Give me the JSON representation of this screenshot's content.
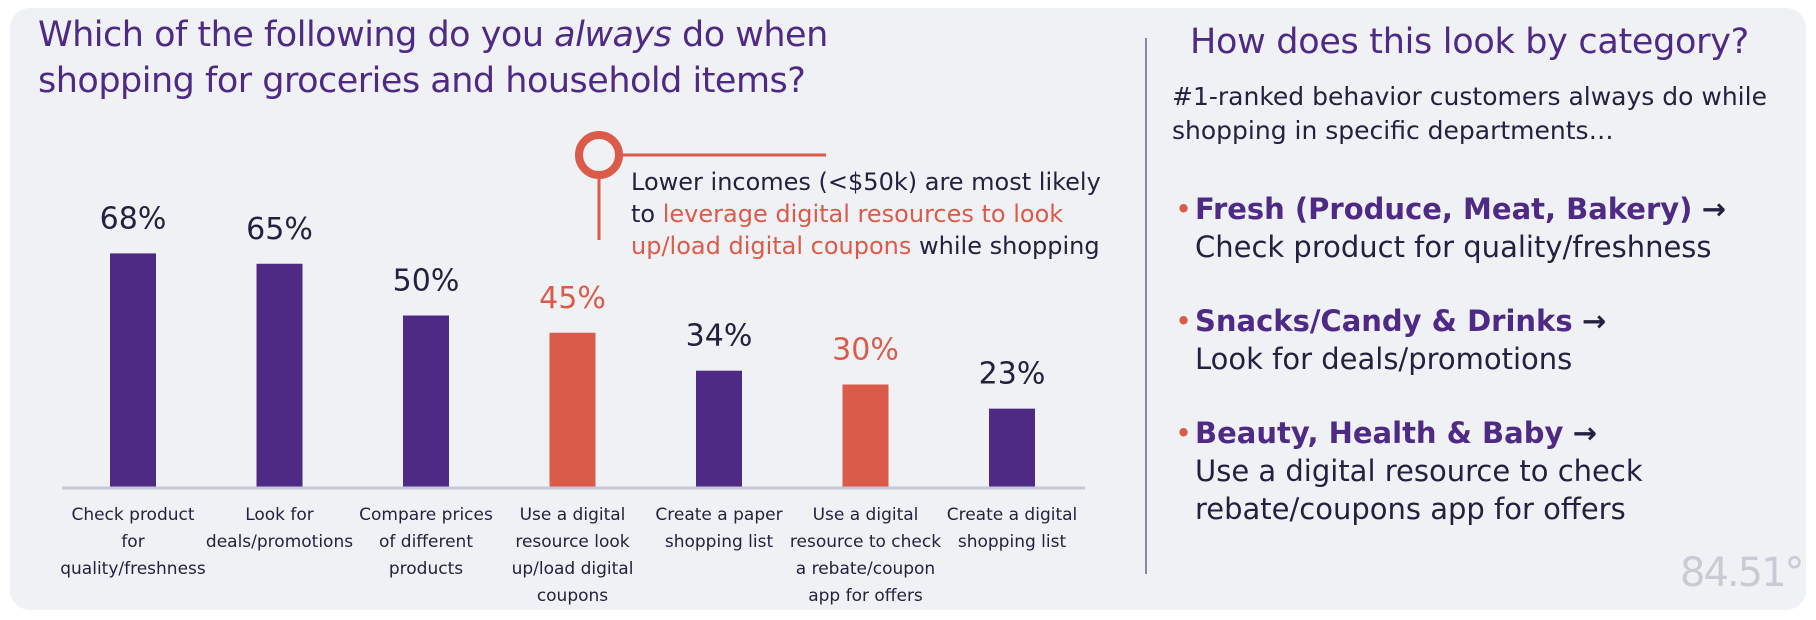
{
  "title": {
    "part1": "Which of the following do you ",
    "emphasis": "always",
    "part2": " do when",
    "line2": "shopping for groceries and household items?"
  },
  "callout": {
    "text1": "Lower incomes (<$50k) are most likely to ",
    "highlight": "leverage digital resources to look up/load digital coupons",
    "text2": " while shopping"
  },
  "right": {
    "title": "How does this look by category?",
    "subtitle": "#1-ranked behavior customers always do while shopping in specific departments…",
    "categories": [
      {
        "name": "Fresh (Produce, Meat, Bakery)",
        "arrow": "→",
        "behavior": "Check product for quality/freshness"
      },
      {
        "name": "Snacks/Candy & Drinks",
        "arrow": "→",
        "behavior": "Look for deals/promotions"
      },
      {
        "name": "Beauty, Health & Baby",
        "arrow": "→",
        "behavior": "Use a digital resource to check rebate/coupons app for offers"
      }
    ]
  },
  "logo": "84.51°",
  "colors": {
    "purple": "#4e2a84",
    "coral": "#db5b4a",
    "text": "#222240",
    "axis": "#c5c7dd"
  },
  "chart_data": {
    "type": "bar",
    "categories": [
      [
        "Check product",
        "for",
        "quality/freshness"
      ],
      [
        "Look for",
        "deals/promotions"
      ],
      [
        "Compare prices",
        "of different",
        "products"
      ],
      [
        "Use a digital",
        "resource look",
        "up/load digital",
        "coupons"
      ],
      [
        "Create a paper",
        "shopping list"
      ],
      [
        "Use a digital",
        "resource to check",
        "a rebate/coupon",
        "app for offers"
      ],
      [
        "Create a digital",
        "shopping list"
      ]
    ],
    "values": [
      68,
      65,
      50,
      45,
      34,
      30,
      23
    ],
    "value_labels": [
      "68%",
      "65%",
      "50%",
      "45%",
      "34%",
      "30%",
      "23%"
    ],
    "highlighted": [
      false,
      false,
      false,
      true,
      false,
      true,
      false
    ],
    "ylim": [
      0,
      100
    ],
    "grid": false,
    "legend": "none"
  }
}
